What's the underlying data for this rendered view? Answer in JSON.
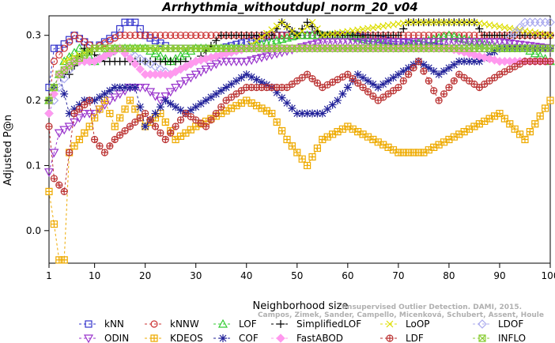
{
  "chart_data": {
    "type": "line",
    "title": "Arrhythmia_withoutdupl_norm_20_v04",
    "xlabel": "Neighborhood size",
    "ylabel": "Adjusted P@n",
    "xlim": [
      1,
      100
    ],
    "ylim": [
      -0.05,
      0.33
    ],
    "x_ticks": [
      1,
      10,
      20,
      30,
      40,
      50,
      60,
      70,
      80,
      90,
      100
    ],
    "y_ticks": [
      0.0,
      0.1,
      0.2,
      0.3
    ],
    "y_tick_labels": [
      "0.0",
      "0.1",
      "0.2",
      "0.3"
    ],
    "grid": false,
    "legend_position": "bottom",
    "watermark": [
      "Campos, Zimek, Sander, Campello, Micenková, Schubert, Assent, Houle",
      "Unsupervised Outlier Detection. DAMI, 2015."
    ],
    "series": [
      {
        "name": "kNN",
        "color": "#3333cc",
        "marker": "square",
        "anchors": [
          [
            1,
            0.22
          ],
          [
            2,
            0.28
          ],
          [
            3,
            0.28
          ],
          [
            6,
            0.3
          ],
          [
            10,
            0.28
          ],
          [
            14,
            0.3
          ],
          [
            16,
            0.32
          ],
          [
            18,
            0.32
          ],
          [
            20,
            0.3
          ],
          [
            25,
            0.28
          ],
          [
            30,
            0.28
          ],
          [
            35,
            0.28
          ],
          [
            45,
            0.3
          ],
          [
            60,
            0.3
          ],
          [
            80,
            0.28
          ],
          [
            90,
            0.28
          ],
          [
            100,
            0.28
          ]
        ]
      },
      {
        "name": "kNNW",
        "color": "#cc3333",
        "marker": "circle",
        "anchors": [
          [
            1,
            0.2
          ],
          [
            2,
            0.26
          ],
          [
            4,
            0.28
          ],
          [
            6,
            0.3
          ],
          [
            10,
            0.28
          ],
          [
            15,
            0.3
          ],
          [
            25,
            0.3
          ],
          [
            30,
            0.3
          ],
          [
            60,
            0.3
          ],
          [
            80,
            0.3
          ],
          [
            100,
            0.3
          ]
        ]
      },
      {
        "name": "LOF",
        "color": "#33cc33",
        "marker": "triangle-up",
        "anchors": [
          [
            1,
            0.2
          ],
          [
            2,
            0.22
          ],
          [
            4,
            0.26
          ],
          [
            7,
            0.28
          ],
          [
            10,
            0.26
          ],
          [
            14,
            0.28
          ],
          [
            20,
            0.28
          ],
          [
            25,
            0.26
          ],
          [
            30,
            0.28
          ],
          [
            40,
            0.28
          ],
          [
            50,
            0.3
          ],
          [
            60,
            0.3
          ],
          [
            70,
            0.28
          ],
          [
            80,
            0.3
          ],
          [
            90,
            0.28
          ],
          [
            95,
            0.28
          ],
          [
            100,
            0.26
          ]
        ]
      },
      {
        "name": "SimplifiedLOF",
        "color": "#000000",
        "marker": "plus",
        "anchors": [
          [
            1,
            0.2
          ],
          [
            3,
            0.24
          ],
          [
            5,
            0.24
          ],
          [
            8,
            0.28
          ],
          [
            12,
            0.26
          ],
          [
            16,
            0.26
          ],
          [
            20,
            0.26
          ],
          [
            25,
            0.26
          ],
          [
            30,
            0.26
          ],
          [
            35,
            0.3
          ],
          [
            45,
            0.3
          ],
          [
            47,
            0.32
          ],
          [
            50,
            0.3
          ],
          [
            52,
            0.32
          ],
          [
            55,
            0.3
          ],
          [
            70,
            0.3
          ],
          [
            72,
            0.32
          ],
          [
            85,
            0.32
          ],
          [
            87,
            0.3
          ],
          [
            100,
            0.3
          ]
        ]
      },
      {
        "name": "LoOP",
        "color": "#dddd00",
        "marker": "x",
        "anchors": [
          [
            1,
            0.2
          ],
          [
            4,
            0.26
          ],
          [
            10,
            0.28
          ],
          [
            20,
            0.28
          ],
          [
            40,
            0.28
          ],
          [
            47,
            0.32
          ],
          [
            50,
            0.3
          ],
          [
            53,
            0.32
          ],
          [
            55,
            0.3
          ],
          [
            72,
            0.32
          ],
          [
            85,
            0.32
          ],
          [
            100,
            0.3
          ]
        ]
      },
      {
        "name": "LDOF",
        "color": "#aaaaee",
        "marker": "diamond",
        "anchors": [
          [
            1,
            0.18
          ],
          [
            3,
            0.22
          ],
          [
            6,
            0.26
          ],
          [
            10,
            0.26
          ],
          [
            15,
            0.28
          ],
          [
            20,
            0.26
          ],
          [
            25,
            0.24
          ],
          [
            30,
            0.26
          ],
          [
            40,
            0.28
          ],
          [
            60,
            0.28
          ],
          [
            80,
            0.28
          ],
          [
            90,
            0.28
          ],
          [
            95,
            0.32
          ],
          [
            100,
            0.32
          ]
        ]
      },
      {
        "name": "ODIN",
        "color": "#9933cc",
        "marker": "triangle-down",
        "anchors": [
          [
            1,
            0.09
          ],
          [
            2,
            0.12
          ],
          [
            3,
            0.15
          ],
          [
            5,
            0.16
          ],
          [
            8,
            0.18
          ],
          [
            10,
            0.18
          ],
          [
            13,
            0.2
          ],
          [
            17,
            0.22
          ],
          [
            20,
            0.22
          ],
          [
            23,
            0.2
          ],
          [
            26,
            0.22
          ],
          [
            30,
            0.24
          ],
          [
            35,
            0.26
          ],
          [
            40,
            0.26
          ],
          [
            45,
            0.27
          ],
          [
            50,
            0.28
          ],
          [
            55,
            0.29
          ],
          [
            60,
            0.29
          ],
          [
            70,
            0.29
          ],
          [
            80,
            0.29
          ],
          [
            90,
            0.29
          ],
          [
            100,
            0.28
          ]
        ]
      },
      {
        "name": "KDEOS",
        "color": "#eeaa00",
        "marker": "square-cross",
        "anchors": [
          [
            1,
            0.06
          ],
          [
            2,
            0.01
          ],
          [
            3,
            -0.045
          ],
          [
            4,
            -0.045
          ],
          [
            5,
            0.12
          ],
          [
            7,
            0.14
          ],
          [
            9,
            0.16
          ],
          [
            12,
            0.2
          ],
          [
            14,
            0.16
          ],
          [
            17,
            0.2
          ],
          [
            20,
            0.16
          ],
          [
            23,
            0.18
          ],
          [
            26,
            0.14
          ],
          [
            30,
            0.16
          ],
          [
            35,
            0.18
          ],
          [
            40,
            0.2
          ],
          [
            45,
            0.18
          ],
          [
            48,
            0.14
          ],
          [
            50,
            0.12
          ],
          [
            52,
            0.1
          ],
          [
            55,
            0.14
          ],
          [
            60,
            0.16
          ],
          [
            65,
            0.14
          ],
          [
            70,
            0.12
          ],
          [
            75,
            0.12
          ],
          [
            80,
            0.14
          ],
          [
            85,
            0.16
          ],
          [
            90,
            0.18
          ],
          [
            95,
            0.14
          ],
          [
            100,
            0.2
          ]
        ]
      },
      {
        "name": "COF",
        "color": "#222299",
        "marker": "asterisk",
        "anchors": [
          [
            1,
            0.2
          ],
          [
            3,
            0.24
          ],
          [
            5,
            0.18
          ],
          [
            8,
            0.2
          ],
          [
            10,
            0.2
          ],
          [
            14,
            0.22
          ],
          [
            18,
            0.22
          ],
          [
            20,
            0.16
          ],
          [
            24,
            0.2
          ],
          [
            28,
            0.18
          ],
          [
            32,
            0.2
          ],
          [
            36,
            0.22
          ],
          [
            40,
            0.24
          ],
          [
            45,
            0.22
          ],
          [
            50,
            0.18
          ],
          [
            55,
            0.18
          ],
          [
            58,
            0.2
          ],
          [
            62,
            0.24
          ],
          [
            66,
            0.22
          ],
          [
            70,
            0.24
          ],
          [
            74,
            0.26
          ],
          [
            78,
            0.24
          ],
          [
            82,
            0.26
          ],
          [
            86,
            0.26
          ],
          [
            90,
            0.28
          ],
          [
            95,
            0.28
          ],
          [
            100,
            0.28
          ]
        ]
      },
      {
        "name": "FastABOD",
        "color": "#ff99ee",
        "marker": "diamond-filled",
        "anchors": [
          [
            1,
            0.18
          ],
          [
            3,
            0.24
          ],
          [
            6,
            0.26
          ],
          [
            10,
            0.26
          ],
          [
            15,
            0.28
          ],
          [
            20,
            0.24
          ],
          [
            25,
            0.24
          ],
          [
            30,
            0.26
          ],
          [
            40,
            0.28
          ],
          [
            50,
            0.28
          ],
          [
            60,
            0.28
          ],
          [
            70,
            0.28
          ],
          [
            80,
            0.28
          ],
          [
            90,
            0.26
          ],
          [
            100,
            0.26
          ]
        ]
      },
      {
        "name": "LDF",
        "color": "#bb3333",
        "marker": "circle-plus",
        "anchors": [
          [
            1,
            0.16
          ],
          [
            2,
            0.08
          ],
          [
            4,
            0.06
          ],
          [
            6,
            0.18
          ],
          [
            9,
            0.2
          ],
          [
            10,
            0.14
          ],
          [
            12,
            0.12
          ],
          [
            14,
            0.14
          ],
          [
            17,
            0.16
          ],
          [
            20,
            0.18
          ],
          [
            24,
            0.14
          ],
          [
            28,
            0.18
          ],
          [
            32,
            0.16
          ],
          [
            36,
            0.2
          ],
          [
            40,
            0.22
          ],
          [
            44,
            0.22
          ],
          [
            48,
            0.22
          ],
          [
            52,
            0.24
          ],
          [
            55,
            0.22
          ],
          [
            60,
            0.24
          ],
          [
            66,
            0.2
          ],
          [
            70,
            0.22
          ],
          [
            74,
            0.26
          ],
          [
            78,
            0.2
          ],
          [
            82,
            0.24
          ],
          [
            86,
            0.22
          ],
          [
            90,
            0.24
          ],
          [
            95,
            0.26
          ],
          [
            100,
            0.26
          ]
        ]
      },
      {
        "name": "INFLO",
        "color": "#88cc33",
        "marker": "square-x",
        "anchors": [
          [
            1,
            0.2
          ],
          [
            3,
            0.24
          ],
          [
            6,
            0.26
          ],
          [
            10,
            0.28
          ],
          [
            20,
            0.28
          ],
          [
            30,
            0.28
          ],
          [
            40,
            0.28
          ],
          [
            60,
            0.28
          ],
          [
            70,
            0.28
          ],
          [
            80,
            0.28
          ],
          [
            90,
            0.28
          ],
          [
            100,
            0.28
          ]
        ]
      }
    ]
  }
}
